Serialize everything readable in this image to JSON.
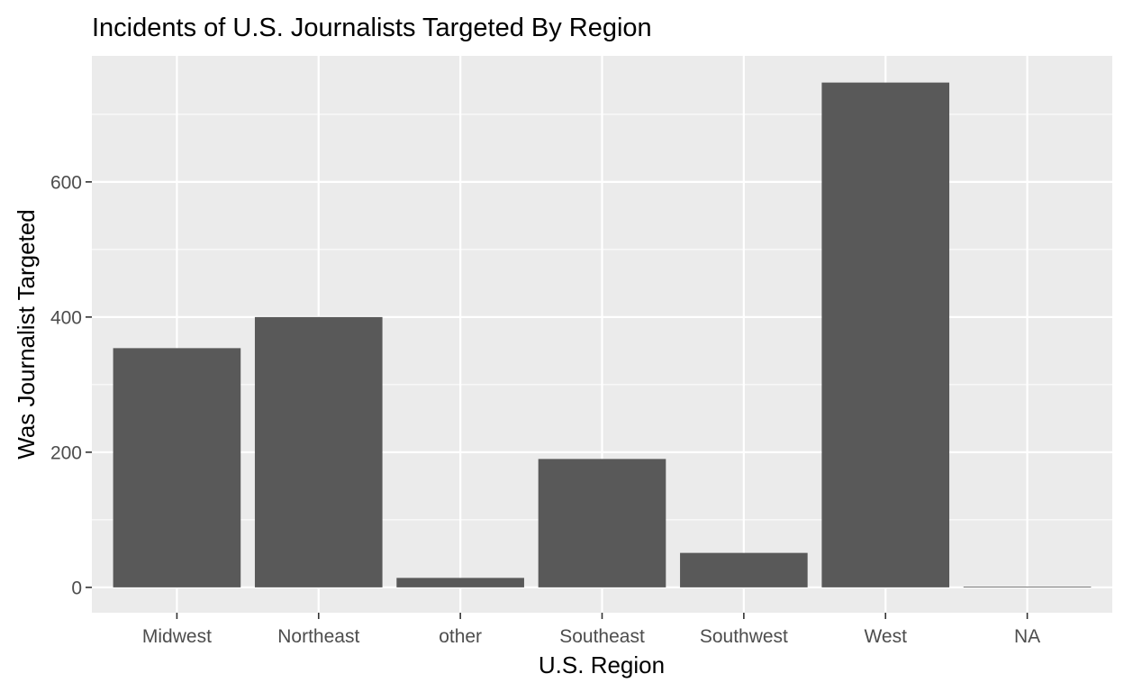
{
  "chart_data": {
    "type": "bar",
    "title": "Incidents of U.S. Journalists Targeted By Region",
    "xlabel": "U.S. Region",
    "ylabel": "Was Journalist Targeted",
    "categories": [
      "Midwest",
      "Northeast",
      "other",
      "Southeast",
      "Southwest",
      "West",
      "NA"
    ],
    "values": [
      354,
      400,
      14,
      190,
      51,
      747,
      1
    ],
    "ylim": [
      -37.5,
      786.5
    ],
    "yticks": [
      0,
      200,
      400,
      600
    ],
    "ytick_labels": [
      "0",
      "200",
      "400",
      "600"
    ],
    "grid": true,
    "legend": "none",
    "colors": {
      "bar": "#595959",
      "panel": "#ebebeb",
      "grid_major": "#ffffff",
      "tick_text": "#4d4d4d",
      "tick_mark": "#333333"
    }
  }
}
